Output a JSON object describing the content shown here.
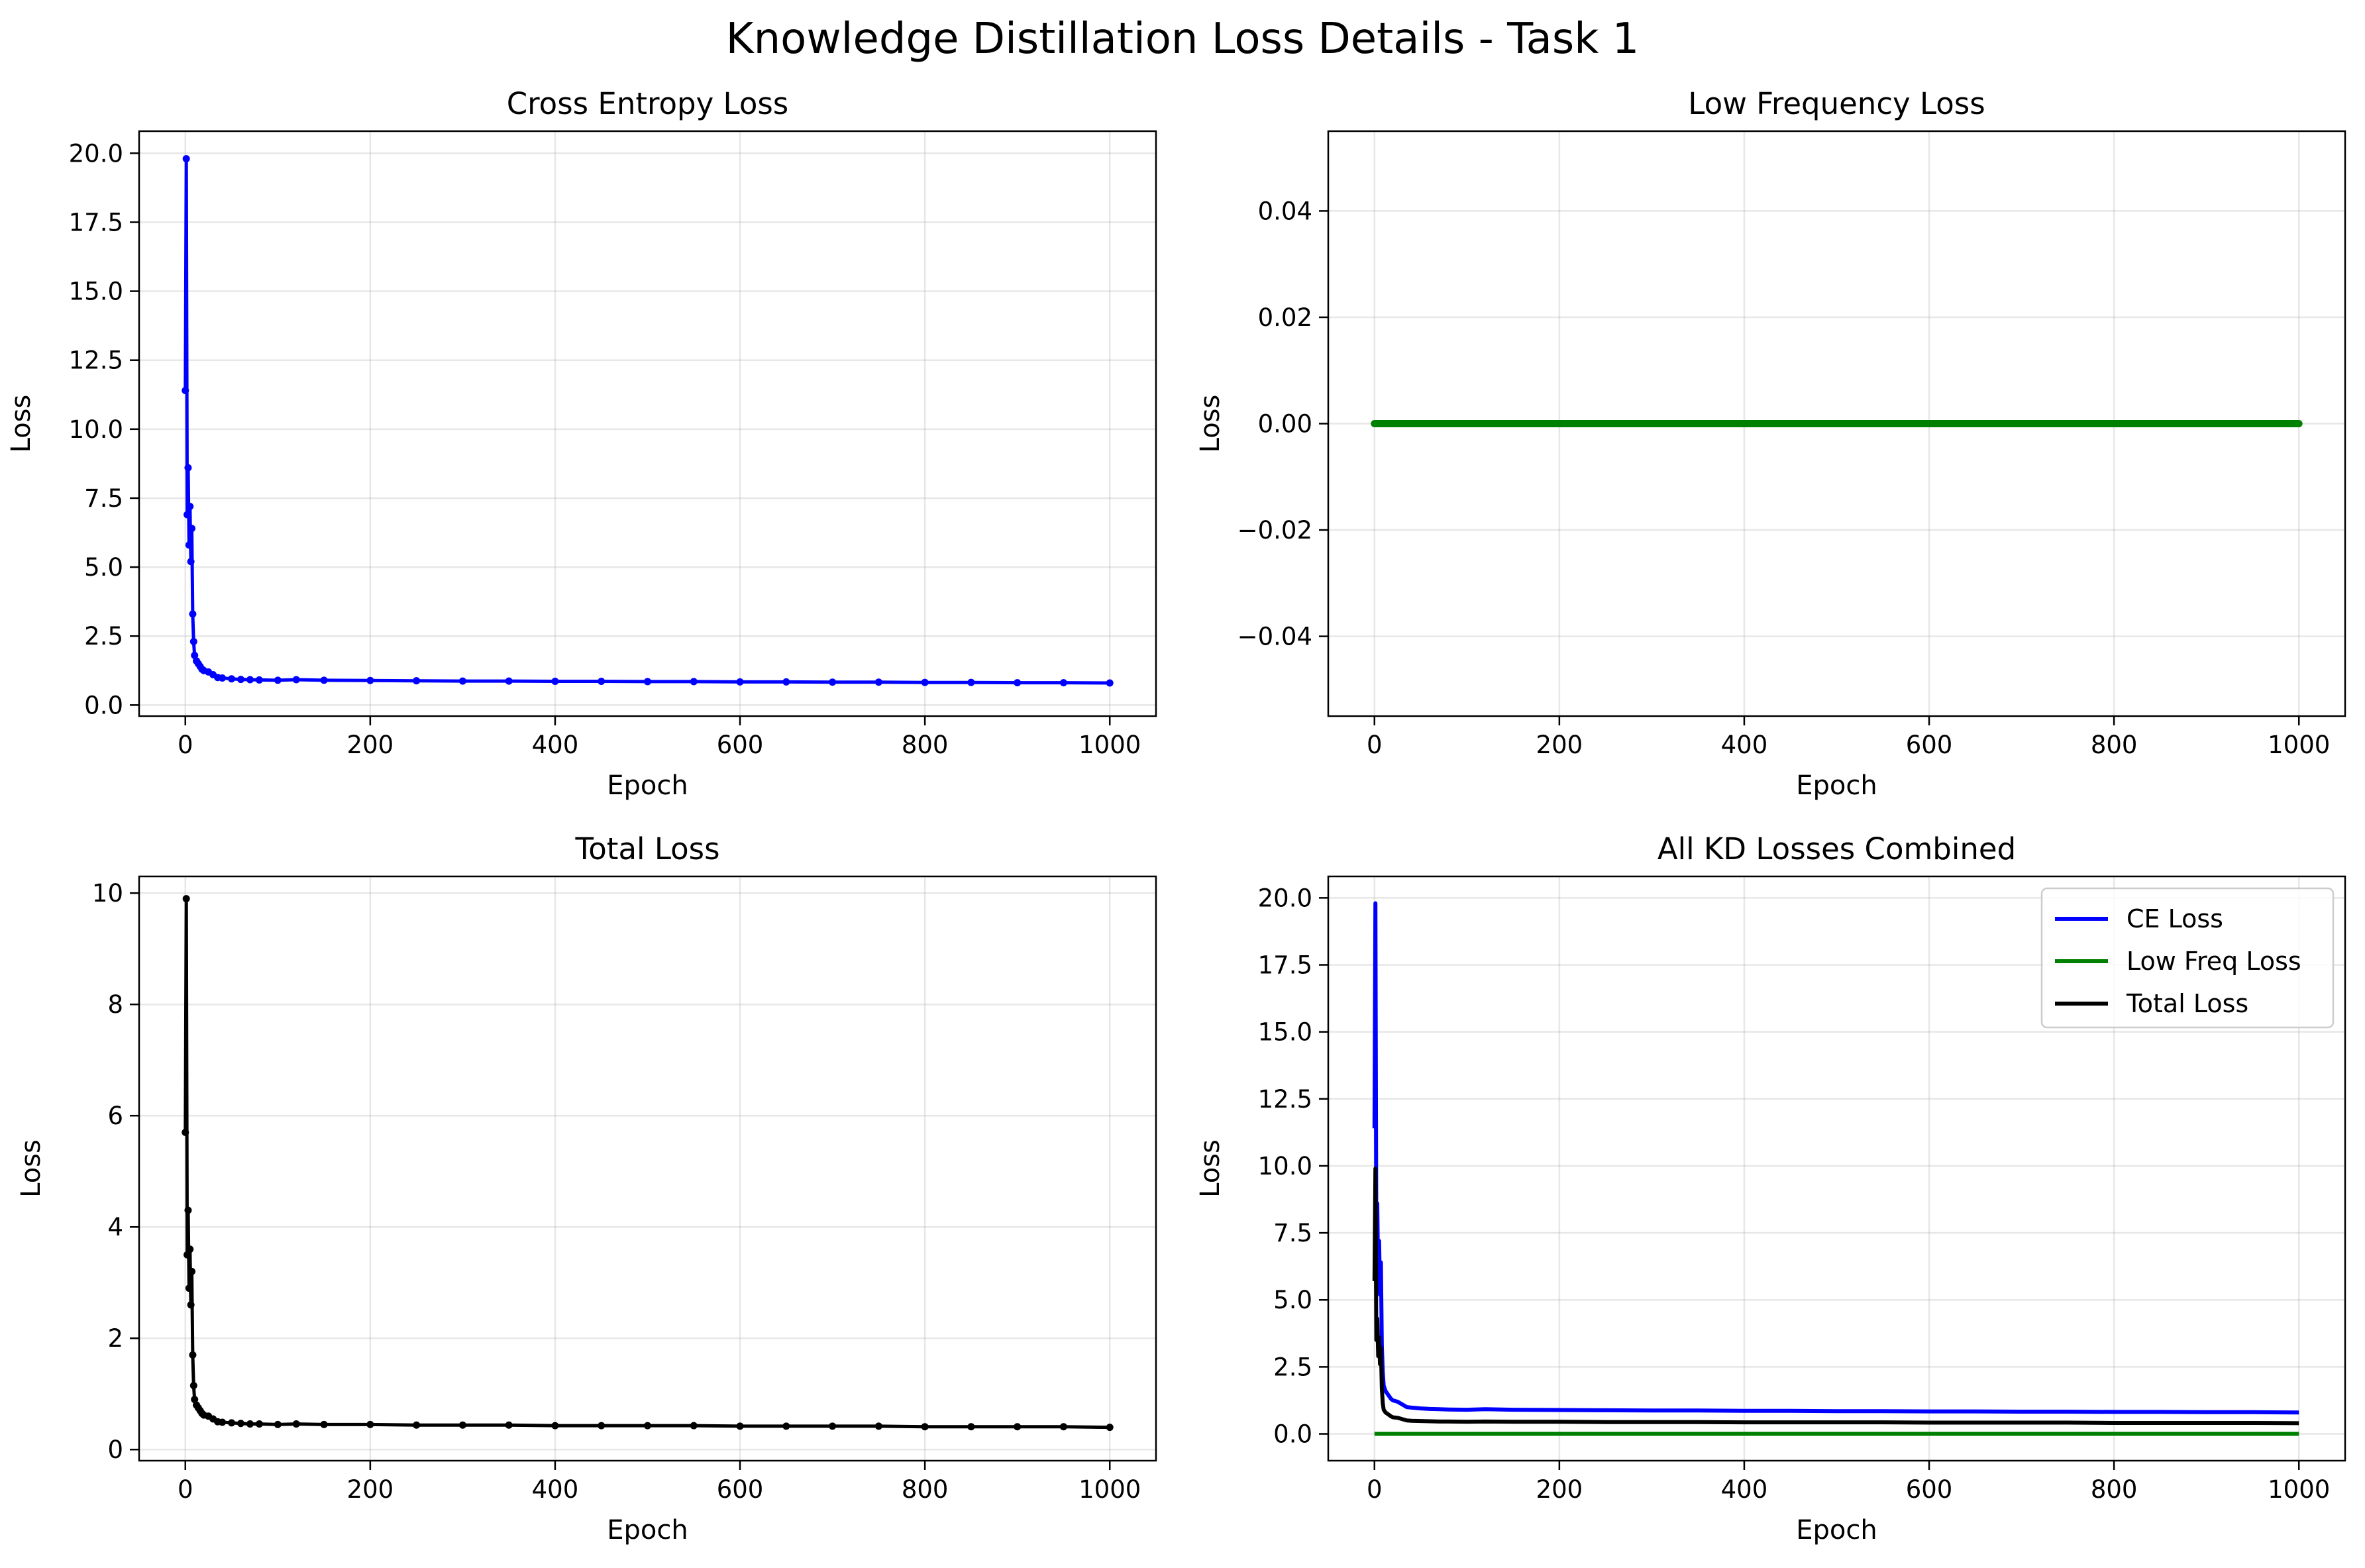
{
  "suptitle": "Knowledge Distillation Loss Details - Task 1",
  "chart_data": [
    {
      "id": "ce",
      "type": "line",
      "title": "Cross Entropy Loss",
      "xlabel": "Epoch",
      "ylabel": "Loss",
      "xlim": [
        -50,
        1050
      ],
      "ylim": [
        -0.4,
        20.8
      ],
      "xticks": [
        0,
        200,
        400,
        600,
        800,
        1000
      ],
      "yticks": [
        0.0,
        2.5,
        5.0,
        7.5,
        10.0,
        12.5,
        15.0,
        17.5,
        20.0
      ],
      "ytick_labels": [
        "0.0",
        "2.5",
        "5.0",
        "7.5",
        "10.0",
        "12.5",
        "15.0",
        "17.5",
        "20.0"
      ],
      "grid": true,
      "markers": true,
      "series": [
        {
          "color": "#0000ff",
          "x": [
            0,
            1,
            2,
            3,
            4,
            5,
            6,
            7,
            8,
            9,
            10,
            12,
            14,
            16,
            18,
            20,
            25,
            30,
            35,
            40,
            50,
            60,
            70,
            80,
            100,
            120,
            150,
            200,
            250,
            300,
            350,
            400,
            450,
            500,
            550,
            600,
            650,
            700,
            750,
            800,
            850,
            900,
            950,
            1000
          ],
          "y": [
            11.4,
            19.8,
            6.9,
            8.6,
            5.8,
            7.2,
            5.2,
            6.4,
            3.3,
            2.3,
            1.8,
            1.6,
            1.5,
            1.4,
            1.3,
            1.25,
            1.2,
            1.1,
            1.0,
            0.98,
            0.95,
            0.93,
            0.92,
            0.91,
            0.9,
            0.92,
            0.9,
            0.89,
            0.88,
            0.87,
            0.87,
            0.86,
            0.86,
            0.85,
            0.85,
            0.84,
            0.84,
            0.83,
            0.83,
            0.82,
            0.82,
            0.81,
            0.81,
            0.8
          ]
        }
      ]
    },
    {
      "id": "lf",
      "type": "line",
      "title": "Low Frequency Loss",
      "xlabel": "Epoch",
      "ylabel": "Loss",
      "xlim": [
        -50,
        1050
      ],
      "ylim": [
        -0.055,
        0.055
      ],
      "xticks": [
        0,
        200,
        400,
        600,
        800,
        1000
      ],
      "yticks": [
        -0.04,
        -0.02,
        0.0,
        0.02,
        0.04
      ],
      "ytick_labels": [
        "−0.04",
        "−0.02",
        "0.00",
        "0.02",
        "0.04"
      ],
      "grid": true,
      "markers": true,
      "series": [
        {
          "color": "#008000",
          "x": [
            0,
            1000
          ],
          "y": [
            0.0,
            0.0
          ]
        }
      ]
    },
    {
      "id": "total",
      "type": "line",
      "title": "Total Loss",
      "xlabel": "Epoch",
      "ylabel": "Loss",
      "xlim": [
        -50,
        1050
      ],
      "ylim": [
        -0.2,
        10.3
      ],
      "xticks": [
        0,
        200,
        400,
        600,
        800,
        1000
      ],
      "yticks": [
        0,
        2,
        4,
        6,
        8,
        10
      ],
      "ytick_labels": [
        "0",
        "2",
        "4",
        "6",
        "8",
        "10"
      ],
      "grid": true,
      "markers": true,
      "series": [
        {
          "color": "#000000",
          "x": [
            0,
            1,
            2,
            3,
            4,
            5,
            6,
            7,
            8,
            9,
            10,
            12,
            14,
            16,
            18,
            20,
            25,
            30,
            35,
            40,
            50,
            60,
            70,
            80,
            100,
            120,
            150,
            200,
            250,
            300,
            350,
            400,
            450,
            500,
            550,
            600,
            650,
            700,
            750,
            800,
            850,
            900,
            950,
            1000
          ],
          "y": [
            5.7,
            9.9,
            3.5,
            4.3,
            2.9,
            3.6,
            2.6,
            3.2,
            1.7,
            1.15,
            0.9,
            0.8,
            0.75,
            0.7,
            0.65,
            0.62,
            0.6,
            0.55,
            0.5,
            0.49,
            0.48,
            0.47,
            0.46,
            0.46,
            0.45,
            0.46,
            0.45,
            0.45,
            0.44,
            0.44,
            0.44,
            0.43,
            0.43,
            0.43,
            0.43,
            0.42,
            0.42,
            0.42,
            0.42,
            0.41,
            0.41,
            0.41,
            0.41,
            0.4
          ]
        }
      ]
    },
    {
      "id": "combined",
      "type": "line",
      "title": "All KD Losses Combined",
      "xlabel": "Epoch",
      "ylabel": "Loss",
      "xlim": [
        -50,
        1050
      ],
      "ylim": [
        -1.0,
        20.8
      ],
      "xticks": [
        0,
        200,
        400,
        600,
        800,
        1000
      ],
      "yticks": [
        0.0,
        2.5,
        5.0,
        7.5,
        10.0,
        12.5,
        15.0,
        17.5,
        20.0
      ],
      "ytick_labels": [
        "0.0",
        "2.5",
        "5.0",
        "7.5",
        "10.0",
        "12.5",
        "15.0",
        "17.5",
        "20.0"
      ],
      "grid": true,
      "markers": false,
      "legend": "top-right",
      "series": [
        {
          "name": "CE Loss",
          "color": "#0000ff",
          "x": [
            0,
            1,
            2,
            3,
            4,
            5,
            6,
            7,
            8,
            9,
            10,
            12,
            14,
            16,
            18,
            20,
            25,
            30,
            35,
            40,
            50,
            60,
            70,
            80,
            100,
            120,
            150,
            200,
            250,
            300,
            350,
            400,
            450,
            500,
            550,
            600,
            650,
            700,
            750,
            800,
            850,
            900,
            950,
            1000
          ],
          "y": [
            11.4,
            19.8,
            6.9,
            8.6,
            5.8,
            7.2,
            5.2,
            6.4,
            3.3,
            2.3,
            1.8,
            1.6,
            1.5,
            1.4,
            1.3,
            1.25,
            1.2,
            1.1,
            1.0,
            0.98,
            0.95,
            0.93,
            0.92,
            0.91,
            0.9,
            0.92,
            0.9,
            0.89,
            0.88,
            0.87,
            0.87,
            0.86,
            0.86,
            0.85,
            0.85,
            0.84,
            0.84,
            0.83,
            0.83,
            0.82,
            0.82,
            0.81,
            0.81,
            0.8
          ]
        },
        {
          "name": "Low Freq Loss",
          "color": "#008000",
          "x": [
            0,
            1000
          ],
          "y": [
            0.0,
            0.0
          ]
        },
        {
          "name": "Total Loss",
          "color": "#000000",
          "x": [
            0,
            1,
            2,
            3,
            4,
            5,
            6,
            7,
            8,
            9,
            10,
            12,
            14,
            16,
            18,
            20,
            25,
            30,
            35,
            40,
            50,
            60,
            70,
            80,
            100,
            120,
            150,
            200,
            250,
            300,
            350,
            400,
            450,
            500,
            550,
            600,
            650,
            700,
            750,
            800,
            850,
            900,
            950,
            1000
          ],
          "y": [
            5.7,
            9.9,
            3.5,
            4.3,
            2.9,
            3.6,
            2.6,
            3.2,
            1.7,
            1.15,
            0.9,
            0.8,
            0.75,
            0.7,
            0.65,
            0.62,
            0.6,
            0.55,
            0.5,
            0.49,
            0.48,
            0.47,
            0.46,
            0.46,
            0.45,
            0.46,
            0.45,
            0.45,
            0.44,
            0.44,
            0.44,
            0.43,
            0.43,
            0.43,
            0.43,
            0.42,
            0.42,
            0.42,
            0.42,
            0.41,
            0.41,
            0.41,
            0.41,
            0.4
          ]
        }
      ]
    }
  ]
}
